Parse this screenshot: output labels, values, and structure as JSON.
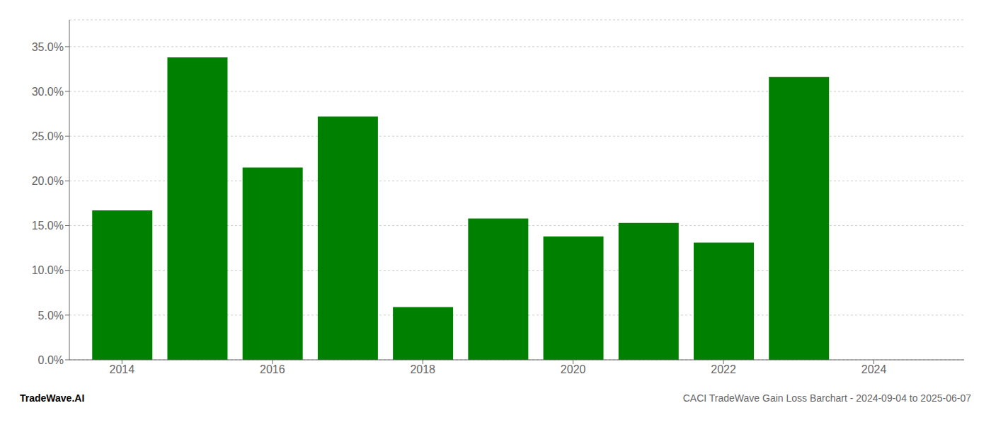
{
  "chart_data": {
    "type": "bar",
    "title": "CACI TradeWave Gain Loss Barchart - 2024-09-04 to 2025-06-07",
    "annotations": [
      "TradeWave.AI"
    ],
    "x": [
      2014,
      2015,
      2016,
      2017,
      2018,
      2019,
      2020,
      2021,
      2022,
      2023
    ],
    "values": [
      0.167,
      0.338,
      0.215,
      0.272,
      0.059,
      0.158,
      0.138,
      0.153,
      0.131,
      0.316
    ],
    "color": "#008000",
    "xlim": [
      2013.3,
      2025.2
    ],
    "xticks": [
      2014,
      2016,
      2018,
      2020,
      2022,
      2024
    ],
    "ylim": [
      0,
      0.38
    ],
    "yticks": [
      {
        "value": 0.0,
        "label": "0.0%"
      },
      {
        "value": 0.05,
        "label": "5.0%"
      },
      {
        "value": 0.1,
        "label": "10.0%"
      },
      {
        "value": 0.15,
        "label": "15.0%"
      },
      {
        "value": 0.2,
        "label": "20.0%"
      },
      {
        "value": 0.25,
        "label": "25.0%"
      },
      {
        "value": 0.3,
        "label": "30.0%"
      },
      {
        "value": 0.35,
        "label": "35.0%"
      }
    ],
    "grid": "y"
  }
}
